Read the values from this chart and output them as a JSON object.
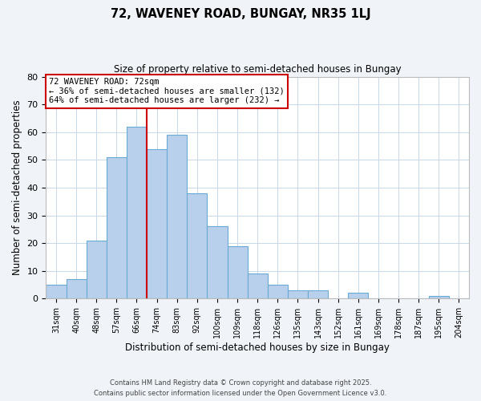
{
  "title1": "72, WAVENEY ROAD, BUNGAY, NR35 1LJ",
  "title2": "Size of property relative to semi-detached houses in Bungay",
  "xlabel": "Distribution of semi-detached houses by size in Bungay",
  "ylabel": "Number of semi-detached properties",
  "bins": [
    "31sqm",
    "40sqm",
    "48sqm",
    "57sqm",
    "66sqm",
    "74sqm",
    "83sqm",
    "92sqm",
    "100sqm",
    "109sqm",
    "118sqm",
    "126sqm",
    "135sqm",
    "143sqm",
    "152sqm",
    "161sqm",
    "169sqm",
    "178sqm",
    "187sqm",
    "195sqm",
    "204sqm"
  ],
  "values": [
    5,
    7,
    21,
    51,
    62,
    54,
    59,
    38,
    26,
    19,
    9,
    5,
    3,
    3,
    0,
    2,
    0,
    0,
    0,
    1,
    0
  ],
  "bar_color": "#b8d0eb",
  "bar_edge_color": "#6aaad4",
  "vline_x": 4.5,
  "vline_color": "#cc0000",
  "annotation_title": "72 WAVENEY ROAD: 72sqm",
  "annotation_line1": "← 36% of semi-detached houses are smaller (132)",
  "annotation_line2": "64% of semi-detached houses are larger (232) →",
  "ylim": [
    0,
    80
  ],
  "yticks": [
    0,
    10,
    20,
    30,
    40,
    50,
    60,
    70,
    80
  ],
  "footer1": "Contains HM Land Registry data © Crown copyright and database right 2025.",
  "footer2": "Contains public sector information licensed under the Open Government Licence v3.0.",
  "bg_color": "#f0f4f8",
  "plot_bg_color": "#ffffff",
  "grid_color": "#c8d8e8"
}
